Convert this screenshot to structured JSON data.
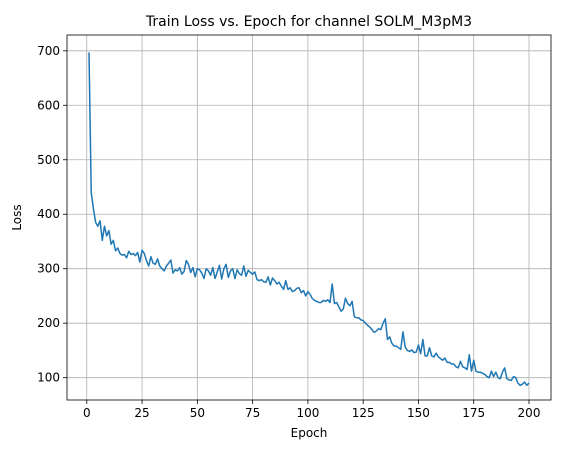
{
  "chart_data": {
    "type": "line",
    "title": "Train Loss vs. Epoch for channel SOLM_M3pM3",
    "xlabel": "Epoch",
    "ylabel": "Loss",
    "xlim": [
      -8.95,
      209.95
    ],
    "ylim": [
      59,
      729
    ],
    "xticks": [
      0,
      25,
      50,
      75,
      100,
      125,
      150,
      175,
      200
    ],
    "yticks": [
      100,
      200,
      300,
      400,
      500,
      600,
      700
    ],
    "grid": true,
    "line_color": "#1f77b4",
    "series": [
      {
        "x": [
          1,
          2,
          3,
          4,
          5,
          6,
          7,
          8,
          9,
          10,
          11,
          12,
          13,
          14,
          15,
          16,
          17,
          18,
          19,
          20,
          21,
          22,
          23,
          24,
          25,
          26,
          27,
          28,
          29,
          30,
          31,
          32,
          33,
          34,
          35,
          36,
          37,
          38,
          39,
          40,
          41,
          42,
          43,
          44,
          45,
          46,
          47,
          48,
          49,
          50,
          51,
          52,
          53,
          54,
          55,
          56,
          57,
          58,
          59,
          60,
          61,
          62,
          63,
          64,
          65,
          66,
          67,
          68,
          69,
          70,
          71,
          72,
          73,
          74,
          75,
          76,
          77,
          78,
          79,
          80,
          81,
          82,
          83,
          84,
          85,
          86,
          87,
          88,
          89,
          90,
          91,
          92,
          93,
          94,
          95,
          96,
          97,
          98,
          99,
          100,
          101,
          102,
          103,
          104,
          105,
          106,
          107,
          108,
          109,
          110,
          111,
          112,
          113,
          114,
          115,
          116,
          117,
          118,
          119,
          120,
          121,
          122,
          123,
          124,
          125,
          126,
          127,
          128,
          129,
          130,
          131,
          132,
          133,
          134,
          135,
          136,
          137,
          138,
          139,
          140,
          141,
          142,
          143,
          144,
          145,
          146,
          147,
          148,
          149,
          150,
          151,
          152,
          153,
          154,
          155,
          156,
          157,
          158,
          159,
          160,
          161,
          162,
          163,
          164,
          165,
          166,
          167,
          168,
          169,
          170,
          171,
          172,
          173,
          174,
          175,
          176,
          177,
          178,
          179,
          180,
          181,
          182,
          183,
          184,
          185,
          186,
          187,
          188,
          189,
          190,
          191,
          192,
          193,
          194,
          195,
          196,
          197,
          198,
          199,
          200
        ],
        "y": [
          697,
          440,
          410,
          385,
          378,
          388,
          352,
          378,
          360,
          370,
          345,
          352,
          333,
          338,
          328,
          325,
          326,
          320,
          332,
          326,
          328,
          324,
          330,
          312,
          334,
          328,
          315,
          305,
          322,
          310,
          308,
          318,
          305,
          300,
          296,
          305,
          310,
          316,
          292,
          298,
          296,
          302,
          290,
          295,
          315,
          308,
          293,
          302,
          285,
          300,
          298,
          292,
          282,
          300,
          296,
          288,
          302,
          282,
          294,
          306,
          281,
          300,
          308,
          284,
          296,
          300,
          282,
          298,
          291,
          288,
          305,
          286,
          297,
          293,
          290,
          294,
          280,
          278,
          280,
          276,
          275,
          285,
          270,
          283,
          278,
          272,
          275,
          268,
          262,
          278,
          262,
          265,
          258,
          260,
          264,
          265,
          256,
          260,
          250,
          258,
          253,
          245,
          242,
          240,
          238,
          238,
          242,
          240,
          243,
          238,
          272,
          236,
          238,
          230,
          222,
          226,
          246,
          236,
          232,
          240,
          212,
          210,
          210,
          206,
          205,
          200,
          196,
          193,
          188,
          183,
          186,
          190,
          188,
          200,
          208,
          170,
          175,
          163,
          158,
          158,
          155,
          152,
          184,
          156,
          150,
          148,
          151,
          146,
          147,
          160,
          144,
          170,
          140,
          140,
          155,
          140,
          138,
          145,
          138,
          135,
          132,
          136,
          128,
          128,
          125,
          125,
          120,
          118,
          130,
          120,
          118,
          115,
          142,
          112,
          132,
          112,
          110,
          110,
          108,
          106,
          102,
          100,
          112,
          102,
          110,
          100,
          98,
          110,
          118,
          98,
          96,
          95,
          102,
          100,
          90,
          86,
          88,
          92,
          86,
          90
        ]
      }
    ]
  }
}
